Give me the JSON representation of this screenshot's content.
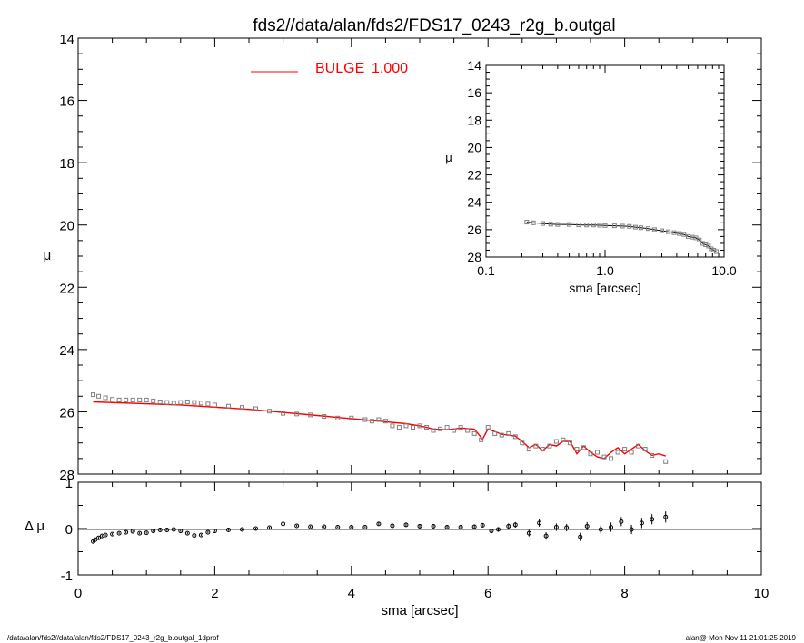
{
  "title": "fds2//data/alan/fds2/FDS17_0243_r2g_b.outgal",
  "footer": {
    "left": "/data/alan/fds2//data/alan/fds2/FDS17_0243_r2g_b.outgal_1dprof",
    "right": "alan@  Mon Nov 11 21:01:25 2019"
  },
  "colors": {
    "model": "#ff0000",
    "data": "#000000",
    "points": "#808080"
  },
  "chart_data": [
    {
      "name": "main-profile",
      "type": "scatter",
      "xlabel": "sma [arcsec]",
      "ylabel": "μ",
      "xlim": [
        0,
        10
      ],
      "ylim": [
        28,
        14
      ],
      "y_reversed": true,
      "xticks": [
        "0",
        "2",
        "4",
        "6",
        "8",
        "10"
      ],
      "yticks": [
        "14",
        "16",
        "18",
        "20",
        "22",
        "24",
        "26",
        "28"
      ],
      "legend": {
        "label": "BULGE",
        "value": "1.000",
        "color": "#ff0000",
        "placement": "top-center"
      },
      "series": [
        {
          "name": "BULGE",
          "kind": "line",
          "color": "#ff0000",
          "x": [
            0.22,
            1.5,
            2.5,
            3.5,
            4.0,
            4.3,
            4.5,
            4.8,
            5.0,
            5.2,
            5.4,
            5.6,
            5.8,
            5.92,
            6.0,
            6.2,
            6.4,
            6.5,
            6.6,
            6.7,
            6.8,
            6.9,
            7.0,
            7.1,
            7.2,
            7.3,
            7.4,
            7.5,
            7.6,
            7.7,
            7.8,
            7.9,
            8.0,
            8.1,
            8.2,
            8.3,
            8.4,
            8.5,
            8.6
          ],
          "y": [
            25.68,
            25.78,
            25.92,
            26.12,
            26.22,
            26.28,
            26.32,
            26.38,
            26.45,
            26.55,
            26.58,
            26.52,
            26.56,
            26.88,
            26.55,
            26.72,
            26.78,
            26.95,
            27.15,
            27.05,
            27.25,
            27.05,
            27.1,
            26.95,
            26.95,
            27.35,
            27.1,
            27.3,
            27.45,
            27.5,
            27.3,
            27.15,
            27.35,
            27.2,
            27.05,
            27.25,
            27.4,
            27.35,
            27.42
          ]
        },
        {
          "name": "data",
          "kind": "markers",
          "x": [
            0.22,
            0.3,
            0.4,
            0.5,
            0.6,
            0.7,
            0.8,
            0.9,
            1.0,
            1.1,
            1.2,
            1.3,
            1.4,
            1.5,
            1.6,
            1.7,
            1.8,
            1.9,
            2.0,
            2.2,
            2.4,
            2.6,
            2.8,
            3.0,
            3.2,
            3.4,
            3.6,
            3.8,
            4.0,
            4.2,
            4.3,
            4.4,
            4.5,
            4.6,
            4.7,
            4.8,
            4.9,
            5.0,
            5.1,
            5.2,
            5.3,
            5.4,
            5.5,
            5.6,
            5.7,
            5.8,
            5.9,
            6.0,
            6.1,
            6.2,
            6.3,
            6.4,
            6.5,
            6.6,
            6.7,
            6.8,
            6.9,
            7.0,
            7.1,
            7.2,
            7.3,
            7.4,
            7.5,
            7.6,
            7.7,
            7.8,
            7.9,
            8.0,
            8.1,
            8.2,
            8.3,
            8.4,
            8.6
          ],
          "y": [
            25.45,
            25.5,
            25.55,
            25.6,
            25.62,
            25.62,
            25.62,
            25.62,
            25.62,
            25.65,
            25.68,
            25.7,
            25.72,
            25.7,
            25.68,
            25.7,
            25.72,
            25.75,
            25.78,
            25.82,
            25.86,
            25.9,
            25.98,
            26.05,
            26.07,
            26.1,
            26.15,
            26.2,
            26.2,
            26.25,
            26.3,
            26.25,
            26.3,
            26.45,
            26.5,
            26.45,
            26.5,
            26.45,
            26.5,
            26.6,
            26.55,
            26.5,
            26.6,
            26.5,
            26.6,
            26.7,
            26.9,
            26.5,
            26.7,
            26.75,
            26.7,
            26.8,
            27.0,
            27.2,
            27.1,
            27.2,
            27.1,
            26.95,
            26.9,
            27.0,
            27.2,
            27.15,
            27.35,
            27.3,
            27.45,
            27.5,
            27.3,
            27.2,
            27.3,
            27.1,
            27.2,
            27.4,
            27.6
          ]
        }
      ]
    },
    {
      "name": "residuals",
      "type": "scatter",
      "xlabel": "sma [arcsec]",
      "ylabel": "Δ μ",
      "xlim": [
        0,
        10
      ],
      "ylim": [
        -1,
        1
      ],
      "xticks": [
        "0",
        "2",
        "4",
        "6",
        "8",
        "10"
      ],
      "yticks": [
        "1",
        "0",
        "-1"
      ],
      "reference_line": 0,
      "series": [
        {
          "name": "residual",
          "kind": "markers-with-errorbars",
          "x": [
            0.22,
            0.25,
            0.3,
            0.35,
            0.4,
            0.5,
            0.6,
            0.7,
            0.8,
            0.9,
            1.0,
            1.1,
            1.2,
            1.3,
            1.4,
            1.5,
            1.6,
            1.7,
            1.8,
            1.9,
            2.0,
            2.2,
            2.4,
            2.6,
            2.8,
            3.0,
            3.2,
            3.4,
            3.6,
            3.8,
            4.0,
            4.2,
            4.4,
            4.6,
            4.8,
            5.0,
            5.2,
            5.4,
            5.6,
            5.8,
            5.92,
            6.05,
            6.15,
            6.3,
            6.4,
            6.6,
            6.75,
            6.85,
            7.0,
            7.15,
            7.35,
            7.45,
            7.65,
            7.8,
            7.95,
            8.1,
            8.25,
            8.4,
            8.6
          ],
          "y": [
            -0.28,
            -0.24,
            -0.2,
            -0.16,
            -0.14,
            -0.12,
            -0.1,
            -0.08,
            -0.06,
            -0.1,
            -0.09,
            -0.05,
            -0.03,
            -0.03,
            -0.02,
            -0.05,
            -0.1,
            -0.15,
            -0.14,
            -0.08,
            -0.05,
            -0.03,
            -0.02,
            0.0,
            0.02,
            0.1,
            0.06,
            0.04,
            0.04,
            0.03,
            0.03,
            0.03,
            0.1,
            0.06,
            0.08,
            0.05,
            0.05,
            0.03,
            0.03,
            0.04,
            0.07,
            -0.05,
            -0.02,
            0.05,
            0.08,
            -0.1,
            0.12,
            -0.16,
            0.03,
            0.02,
            -0.18,
            0.05,
            -0.02,
            0.03,
            0.15,
            -0.02,
            0.12,
            0.2,
            0.25
          ],
          "err": [
            0.02,
            0.02,
            0.02,
            0.02,
            0.02,
            0.02,
            0.02,
            0.02,
            0.02,
            0.02,
            0.02,
            0.02,
            0.02,
            0.02,
            0.02,
            0.02,
            0.02,
            0.02,
            0.02,
            0.02,
            0.02,
            0.02,
            0.02,
            0.02,
            0.02,
            0.02,
            0.02,
            0.02,
            0.02,
            0.02,
            0.02,
            0.02,
            0.03,
            0.03,
            0.03,
            0.03,
            0.03,
            0.03,
            0.03,
            0.04,
            0.04,
            0.05,
            0.05,
            0.06,
            0.06,
            0.07,
            0.08,
            0.08,
            0.08,
            0.08,
            0.09,
            0.09,
            0.09,
            0.1,
            0.1,
            0.1,
            0.11,
            0.11,
            0.12
          ]
        }
      ]
    },
    {
      "name": "inset-log-profile",
      "type": "scatter",
      "xlabel": "sma [arcsec]",
      "ylabel": "μ",
      "x_scale": "log",
      "xlim": [
        0.1,
        10.0
      ],
      "ylim": [
        28,
        14
      ],
      "y_reversed": true,
      "xticks": [
        "0.1",
        "1.0",
        "10.0"
      ],
      "yticks": [
        "14",
        "16",
        "18",
        "20",
        "22",
        "24",
        "26",
        "28"
      ],
      "series": [
        {
          "name": "data",
          "kind": "markers",
          "x": [
            0.22,
            0.25,
            0.3,
            0.35,
            0.4,
            0.5,
            0.6,
            0.7,
            0.8,
            0.9,
            1.0,
            1.2,
            1.4,
            1.6,
            1.8,
            2.0,
            2.3,
            2.6,
            3.0,
            3.4,
            3.8,
            4.2,
            4.6,
            5.0,
            5.4,
            5.8,
            6.2,
            6.6,
            7.0,
            7.4,
            7.8,
            8.2,
            8.6
          ],
          "y": [
            25.45,
            25.5,
            25.55,
            25.6,
            25.62,
            25.62,
            25.65,
            25.66,
            25.66,
            25.68,
            25.7,
            25.72,
            25.74,
            25.76,
            25.82,
            25.86,
            25.92,
            26.0,
            26.08,
            26.15,
            26.22,
            26.28,
            26.35,
            26.5,
            26.55,
            26.6,
            26.75,
            27.0,
            27.1,
            27.2,
            27.4,
            27.5,
            27.6
          ]
        }
      ]
    }
  ]
}
